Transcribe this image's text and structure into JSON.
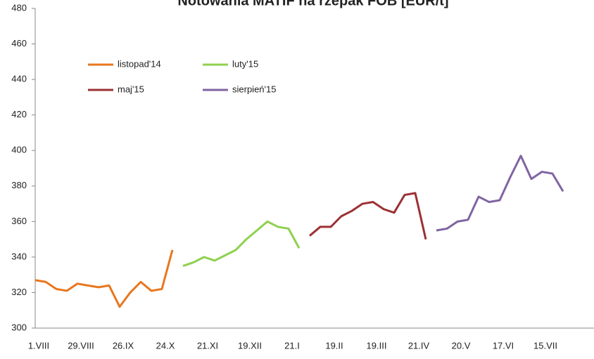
{
  "chart_data": {
    "type": "line",
    "title": "Notowania MATIF na rzepak FOB [EUR/t]",
    "categories": [
      "1.VIII",
      null,
      null,
      null,
      "29.VIII",
      null,
      null,
      null,
      "26.IX",
      null,
      null,
      null,
      "24.X",
      null,
      null,
      null,
      "21.XI",
      null,
      null,
      null,
      "19.XII",
      null,
      null,
      null,
      "21.I",
      null,
      null,
      null,
      "19.II",
      null,
      null,
      null,
      "19.III",
      null,
      null,
      null,
      "21.IV",
      null,
      null,
      null,
      "20.V",
      null,
      null,
      null,
      "17.VI",
      null,
      null,
      null,
      "15.VII",
      null,
      null
    ],
    "series": [
      {
        "name": "listopad'14",
        "color": "#e8771f",
        "values": [
          327,
          326,
          322,
          321,
          325,
          324,
          323,
          324,
          312,
          320,
          326,
          321,
          322,
          344,
          null,
          null,
          null,
          null,
          null,
          null,
          null,
          null,
          null,
          null,
          null,
          null,
          null,
          null,
          null,
          null,
          null,
          null,
          null,
          null,
          null,
          null,
          null,
          null,
          null,
          null,
          null,
          null,
          null,
          null,
          null,
          null,
          null,
          null,
          null,
          null,
          null
        ]
      },
      {
        "name": "luty'15",
        "color": "#8fd04f",
        "values": [
          null,
          null,
          null,
          null,
          null,
          null,
          null,
          null,
          null,
          null,
          null,
          null,
          null,
          null,
          335,
          337,
          340,
          338,
          341,
          344,
          350,
          355,
          360,
          357,
          356,
          345,
          null,
          null,
          null,
          null,
          null,
          null,
          null,
          null,
          null,
          null,
          null,
          null,
          null,
          null,
          null,
          null,
          null,
          null,
          null,
          null,
          null,
          null,
          null,
          null,
          null
        ]
      },
      {
        "name": "maj'15",
        "color": "#9b3134",
        "values": [
          null,
          null,
          null,
          null,
          null,
          null,
          null,
          null,
          null,
          null,
          null,
          null,
          null,
          null,
          null,
          null,
          null,
          null,
          null,
          null,
          null,
          null,
          null,
          null,
          null,
          null,
          352,
          357,
          357,
          363,
          366,
          370,
          371,
          367,
          365,
          375,
          376,
          350,
          null,
          null,
          null,
          null,
          null,
          null,
          null,
          null,
          null,
          null,
          null,
          null,
          null
        ]
      },
      {
        "name": "sierpień'15",
        "color": "#8064a2",
        "values": [
          null,
          null,
          null,
          null,
          null,
          null,
          null,
          null,
          null,
          null,
          null,
          null,
          null,
          null,
          null,
          null,
          null,
          null,
          null,
          null,
          null,
          null,
          null,
          null,
          null,
          null,
          null,
          null,
          null,
          null,
          null,
          null,
          null,
          null,
          null,
          null,
          null,
          null,
          355,
          356,
          360,
          361,
          374,
          371,
          372,
          385,
          397,
          384,
          388,
          387,
          377
        ]
      }
    ],
    "ylim": [
      300,
      480
    ],
    "yticks": [
      300,
      320,
      340,
      360,
      380,
      400,
      420,
      440,
      460,
      480
    ]
  }
}
